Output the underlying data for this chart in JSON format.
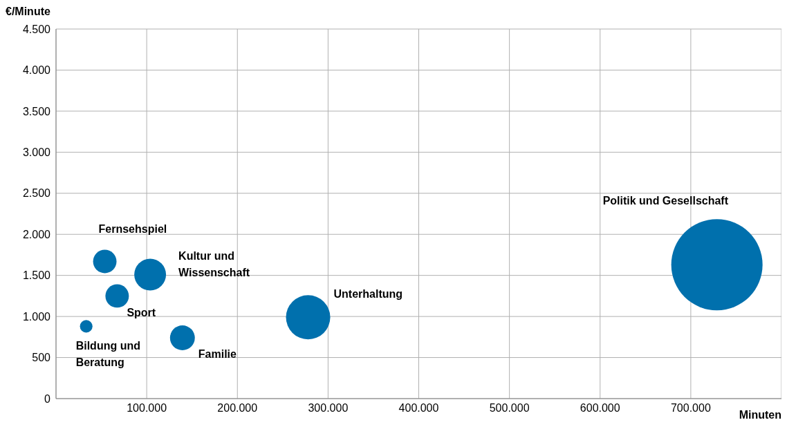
{
  "chart_data": {
    "type": "bubble",
    "xlabel": "Minuten",
    "ylabel": "€/Minute",
    "xlim": [
      0,
      800000
    ],
    "xticks": [
      {
        "value": 100000,
        "label": "100.000"
      },
      {
        "value": 200000,
        "label": "200.000"
      },
      {
        "value": 300000,
        "label": "300.000"
      },
      {
        "value": 400000,
        "label": "400.000"
      },
      {
        "value": 500000,
        "label": "500.000"
      },
      {
        "value": 600000,
        "label": "600.000"
      },
      {
        "value": 700000,
        "label": "700.000"
      }
    ],
    "ylim": [
      0,
      4500
    ],
    "yticks": [
      {
        "value": 0,
        "label": "0"
      },
      {
        "value": 500,
        "label": "500"
      },
      {
        "value": 1000,
        "label": "1.000"
      },
      {
        "value": 1500,
        "label": "1.500"
      },
      {
        "value": 2000,
        "label": "2.000"
      },
      {
        "value": 2500,
        "label": "2.500"
      },
      {
        "value": 3000,
        "label": "3.000"
      },
      {
        "value": 3500,
        "label": "3.500"
      },
      {
        "value": 4000,
        "label": "4.000"
      },
      {
        "value": 4500,
        "label": "4.500"
      }
    ],
    "grid": true,
    "series": [
      {
        "name": "Bildung und Beratung",
        "color": "#0070ad",
        "x": [
          33300
        ],
        "values": [
          880
        ],
        "sizes": [
          0.019
        ]
      },
      {
        "name": "Fernsehspiel",
        "color": "#0070ad",
        "x": [
          53800
        ],
        "values": [
          1670
        ],
        "sizes": [
          0.066
        ]
      },
      {
        "name": "Sport",
        "color": "#0070ad",
        "x": [
          67400
        ],
        "values": [
          1250
        ],
        "sizes": [
          0.066
        ]
      },
      {
        "name": "Kultur und Wissenschaft",
        "color": "#0070ad",
        "x": [
          103800
        ],
        "values": [
          1510
        ],
        "sizes": [
          0.121
        ]
      },
      {
        "name": "Familie",
        "color": "#0070ad",
        "x": [
          139400
        ],
        "values": [
          740
        ],
        "sizes": [
          0.074
        ]
      },
      {
        "name": "Unterhaltung",
        "color": "#0070ad",
        "x": [
          278000
        ],
        "values": [
          990
        ],
        "sizes": [
          0.235
        ]
      },
      {
        "name": "Politik und Gesellschaft",
        "color": "#0070ad",
        "x": [
          728800
        ],
        "values": [
          1630
        ],
        "sizes": [
          1
        ]
      }
    ]
  }
}
